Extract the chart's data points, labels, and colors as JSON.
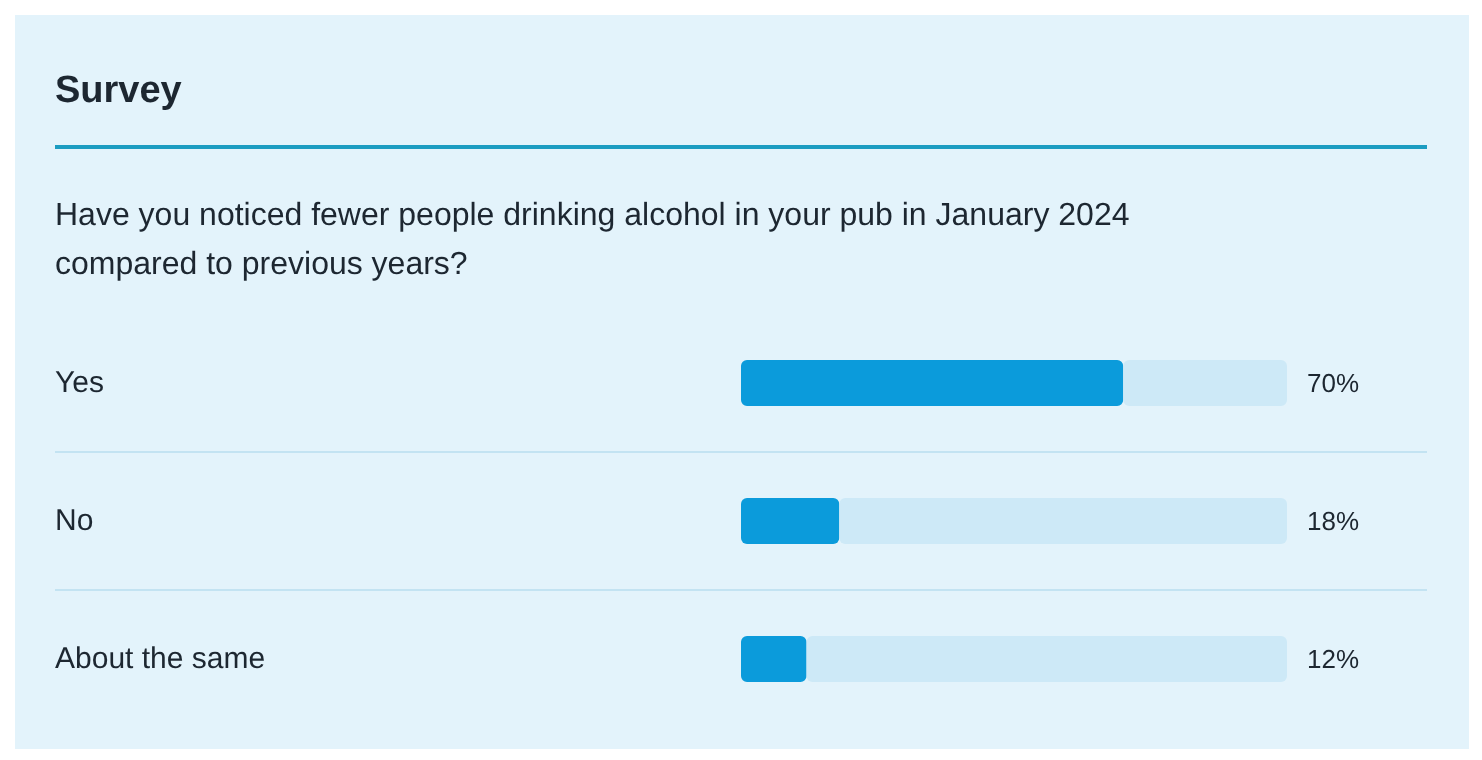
{
  "chart_data": {
    "type": "bar",
    "orientation": "horizontal",
    "stacked": true,
    "title": "Survey",
    "subtitle": "Have you noticed fewer people drinking alcohol in your pub in January 2024 compared to previous years?",
    "categories": [
      "Yes",
      "No",
      "About the same"
    ],
    "series": [
      {
        "color": "#0b9bdb",
        "values": [
          70,
          18,
          12
        ],
        "value_labels": [
          "70%",
          "18%",
          "12%"
        ]
      },
      {
        "color": "#cde9f7",
        "values": [
          30,
          82,
          88
        ]
      }
    ],
    "xlim": [
      0,
      100
    ],
    "tick_labels": false,
    "grid": false
  }
}
